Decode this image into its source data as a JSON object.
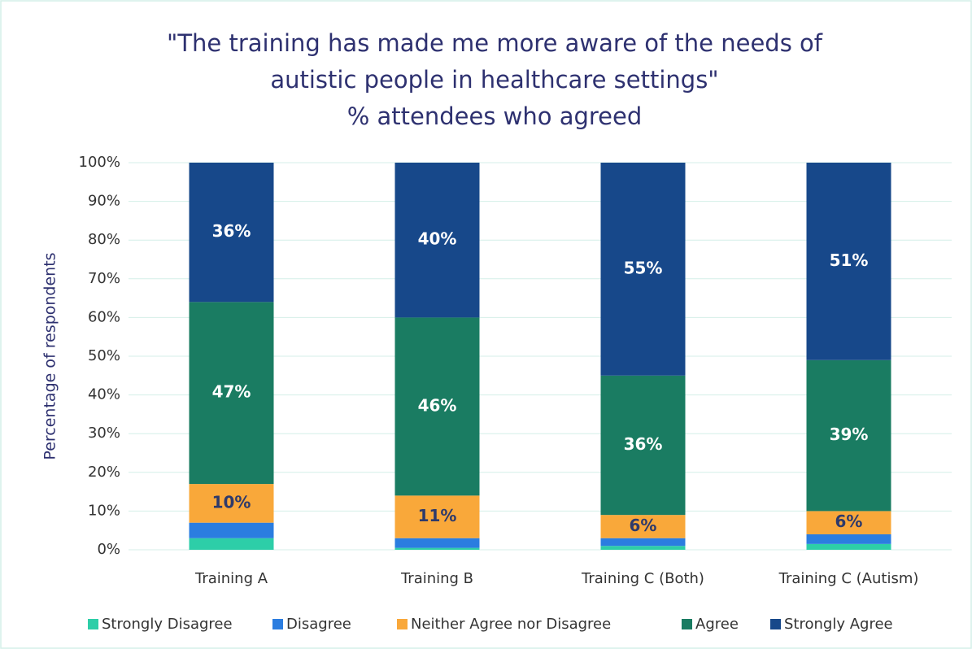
{
  "chart_data": {
    "type": "stacked_bar",
    "title": [
      "\"The training has made me more aware of the needs of",
      "autistic people in healthcare settings\""
    ],
    "subtitle": "% attendees who agreed",
    "y_label": "Percentage of respondents",
    "categories": [
      "Training A",
      "Training B",
      "Training C (Both)",
      "Training C (Autism)"
    ],
    "series": [
      {
        "name": "Strongly Disagree",
        "color": "#2dcea8",
        "values": [
          3,
          0.5,
          1,
          1.5
        ],
        "value_labels": [
          null,
          null,
          null,
          null
        ],
        "label_color": "#2e3a6b"
      },
      {
        "name": "Disagree",
        "color": "#2b7de0",
        "values": [
          4,
          2.5,
          2,
          2.5
        ],
        "value_labels": [
          null,
          null,
          null,
          null
        ],
        "label_color": "#2e3a6b"
      },
      {
        "name": "Neither Agree nor Disagree",
        "color": "#f9a83a",
        "values": [
          10,
          11,
          6,
          6
        ],
        "value_labels": [
          "10%",
          "11%",
          "6%",
          "6%"
        ],
        "label_color": "#2e3a6b"
      },
      {
        "name": "Agree",
        "color": "#1a7c62",
        "values": [
          47,
          46,
          36,
          39
        ],
        "value_labels": [
          "47%",
          "46%",
          "36%",
          "39%"
        ],
        "label_color": "#ffffff"
      },
      {
        "name": "Strongly Agree",
        "color": "#17488a",
        "values": [
          36,
          40,
          55,
          51
        ],
        "value_labels": [
          "36%",
          "40%",
          "55%",
          "51%"
        ],
        "label_color": "#ffffff"
      }
    ],
    "ylim": [
      0,
      100
    ],
    "yticks": [
      {
        "value": 0,
        "label": "0%"
      },
      {
        "value": 10,
        "label": "10%"
      },
      {
        "value": 20,
        "label": "20%"
      },
      {
        "value": 30,
        "label": "30%"
      },
      {
        "value": 40,
        "label": "40%"
      },
      {
        "value": 50,
        "label": "50%"
      },
      {
        "value": 60,
        "label": "60%"
      },
      {
        "value": 70,
        "label": "70%"
      },
      {
        "value": 80,
        "label": "80%"
      },
      {
        "value": 90,
        "label": "90%"
      },
      {
        "value": 100,
        "label": "100%"
      }
    ],
    "grid": true,
    "legend": "bottom"
  }
}
